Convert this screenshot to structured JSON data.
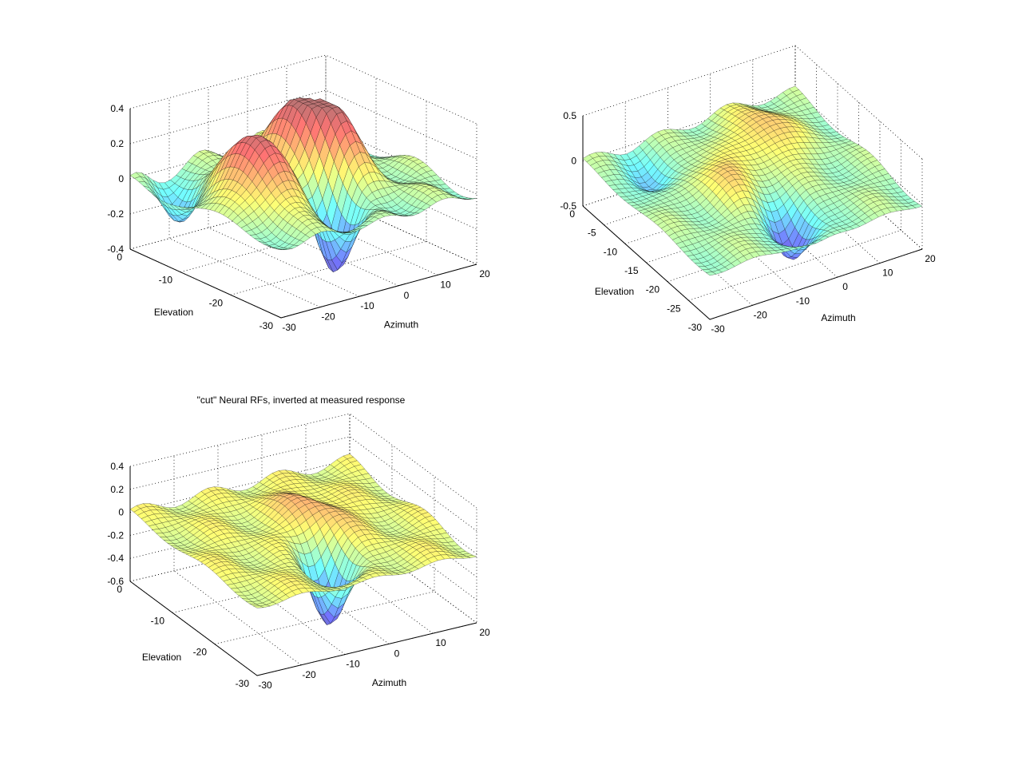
{
  "chart_data": [
    {
      "type": "surface",
      "title": "",
      "xlabel": "Azimuth",
      "ylabel": "Elevation",
      "zlabel": "",
      "xlim": [
        -30,
        20
      ],
      "ylim": [
        -30,
        0
      ],
      "zlim": [
        -0.4,
        0.4
      ],
      "x_ticks": [
        -30,
        -20,
        -10,
        0,
        10,
        20
      ],
      "y_ticks": [
        0,
        -10,
        -20,
        -30
      ],
      "z_ticks": [
        0.4,
        0.2,
        0,
        -0.2,
        -0.4
      ],
      "grid": true,
      "colormap": "jet",
      "surface_features": {
        "peaks": [
          {
            "azimuth": -18,
            "elevation": -16,
            "value": 0.4
          },
          {
            "azimuth": 0,
            "elevation": -10,
            "value": 0.3
          },
          {
            "azimuth": 4,
            "elevation": -14,
            "value": 0.28
          }
        ],
        "troughs": [
          {
            "azimuth": -6,
            "elevation": -22,
            "value": -0.4
          },
          {
            "azimuth": -24,
            "elevation": -5,
            "value": -0.22
          }
        ]
      }
    },
    {
      "type": "surface",
      "title": "",
      "xlabel": "Azimuth",
      "ylabel": "Elevation",
      "zlabel": "",
      "xlim": [
        -30,
        20
      ],
      "ylim": [
        -30,
        0
      ],
      "zlim": [
        -0.5,
        0.5
      ],
      "x_ticks": [
        -30,
        -20,
        -10,
        0,
        10,
        20
      ],
      "y_ticks": [
        0,
        -5,
        -10,
        -15,
        -20,
        -25,
        -30
      ],
      "z_ticks": [
        0.5,
        0,
        -0.5
      ],
      "grid": true,
      "colormap": "jet",
      "surface_features": {
        "peaks": [
          {
            "azimuth": 5,
            "elevation": -8,
            "value": 0.25
          },
          {
            "azimuth": -10,
            "elevation": -14,
            "value": 0.2
          }
        ],
        "troughs": [
          {
            "azimuth": -5,
            "elevation": -24,
            "value": -0.5
          },
          {
            "azimuth": -20,
            "elevation": -6,
            "value": -0.25
          }
        ]
      }
    },
    {
      "type": "surface",
      "title": "\"cut\" Neural RFs, inverted at measured response",
      "xlabel": "Azimuth",
      "ylabel": "Elevation",
      "zlabel": "",
      "xlim": [
        -30,
        20
      ],
      "ylim": [
        -30,
        0
      ],
      "zlim": [
        -0.6,
        0.4
      ],
      "x_ticks": [
        -30,
        -20,
        -10,
        0,
        10,
        20
      ],
      "y_ticks": [
        0,
        -10,
        -20,
        -30
      ],
      "z_ticks": [
        0.4,
        0.2,
        0,
        -0.2,
        -0.4,
        -0.6
      ],
      "grid": true,
      "colormap": "jet",
      "surface_features": {
        "peaks": [
          {
            "azimuth": 0,
            "elevation": -12,
            "value": 0.15
          }
        ],
        "troughs": [
          {
            "azimuth": -6,
            "elevation": -22,
            "value": -0.6
          }
        ]
      }
    }
  ]
}
